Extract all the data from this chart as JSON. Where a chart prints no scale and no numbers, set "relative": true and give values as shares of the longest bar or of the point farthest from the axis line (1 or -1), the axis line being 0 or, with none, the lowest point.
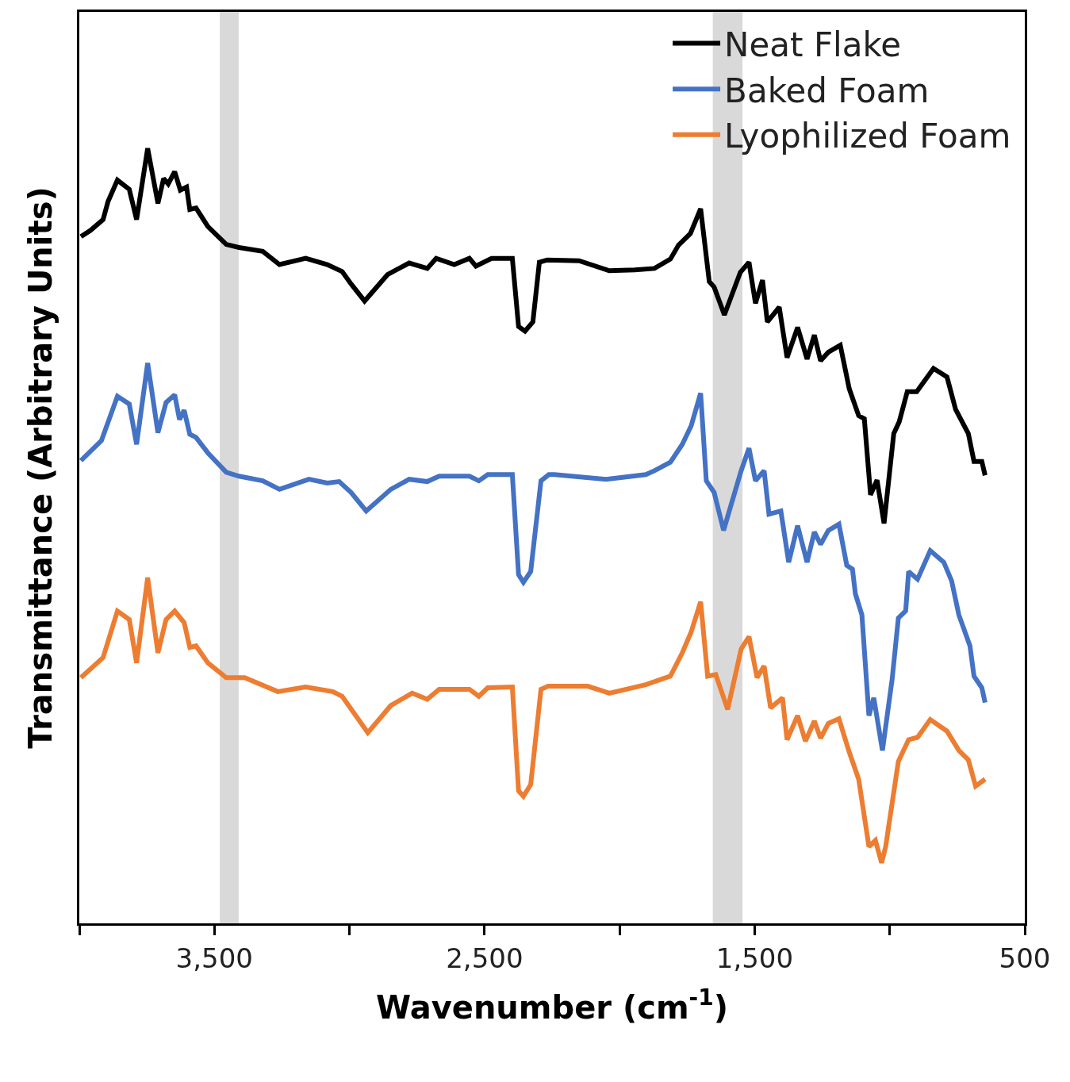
{
  "chart_data": {
    "type": "line",
    "relative": true,
    "xlabel": "Wavenumber (cm$^{-1}$)",
    "ylabel": "Transmittance (Arbitrary Units)",
    "xlim": [
      4000,
      500
    ],
    "xticks": [
      {
        "value": 4000,
        "label": null
      },
      {
        "value": 3500,
        "label": "3,500"
      },
      {
        "value": 3000,
        "label": null
      },
      {
        "value": 2500,
        "label": "2,500"
      },
      {
        "value": 2000,
        "label": null
      },
      {
        "value": 1500,
        "label": "1,500"
      },
      {
        "value": 1000,
        "label": null
      },
      500
    ],
    "legend": "top right",
    "grid": false,
    "marker": "none",
    "line_style": "solid",
    "bands": [
      {
        "axis": "x",
        "from": 3480,
        "to": 3410,
        "color": "#d9d9d9"
      },
      {
        "axis": "x",
        "from": 1655,
        "to": 1545,
        "color": "#d9d9d9"
      }
    ],
    "series": [
      {
        "name": "Neat Flake",
        "color": "#000000",
        "x": [
          3994,
          3959,
          3912,
          3894,
          3859,
          3815,
          3788,
          3747,
          3709,
          3688,
          3671,
          3647,
          3626,
          3603,
          3591,
          3568,
          3524,
          3456,
          3409,
          3321,
          3259,
          3162,
          3082,
          3027,
          2994,
          2944,
          2859,
          2779,
          2712,
          2679,
          2612,
          2556,
          2532,
          2474,
          2397,
          2374,
          2350,
          2321,
          2297,
          2268,
          2150,
          2038,
          1944,
          1871,
          1812,
          1782,
          1738,
          1700,
          1668,
          1650,
          1612,
          1553,
          1521,
          1497,
          1471,
          1453,
          1409,
          1380,
          1341,
          1306,
          1279,
          1256,
          1227,
          1183,
          1150,
          1115,
          1094,
          1071,
          1047,
          1021,
          985,
          965,
          935,
          900,
          838,
          788,
          756,
          709,
          688,
          659,
          647
        ],
        "values": [
          0.886,
          0.894,
          0.908,
          0.931,
          0.959,
          0.947,
          0.908,
          1.0,
          0.929,
          0.961,
          0.954,
          0.97,
          0.946,
          0.95,
          0.921,
          0.923,
          0.899,
          0.876,
          0.872,
          0.867,
          0.85,
          0.858,
          0.85,
          0.841,
          0.825,
          0.803,
          0.837,
          0.852,
          0.845,
          0.858,
          0.85,
          0.858,
          0.848,
          0.858,
          0.858,
          0.77,
          0.764,
          0.776,
          0.853,
          0.856,
          0.855,
          0.842,
          0.843,
          0.845,
          0.857,
          0.875,
          0.89,
          0.922,
          0.828,
          0.821,
          0.785,
          0.84,
          0.853,
          0.8,
          0.83,
          0.776,
          0.795,
          0.73,
          0.769,
          0.728,
          0.759,
          0.726,
          0.737,
          0.746,
          0.69,
          0.655,
          0.651,
          0.553,
          0.572,
          0.516,
          0.632,
          0.647,
          0.686,
          0.686,
          0.716,
          0.705,
          0.663,
          0.632,
          0.596,
          0.596,
          0.578
        ]
      },
      {
        "name": "Baked Foam",
        "color": "#4472c4",
        "x": [
          3994,
          3918,
          3859,
          3815,
          3788,
          3747,
          3709,
          3679,
          3647,
          3629,
          3612,
          3591,
          3568,
          3524,
          3456,
          3409,
          3321,
          3259,
          3150,
          3082,
          3038,
          2994,
          2938,
          2847,
          2779,
          2712,
          2668,
          2556,
          2521,
          2488,
          2397,
          2374,
          2356,
          2329,
          2291,
          2262,
          2241,
          2050,
          1903,
          1871,
          1812,
          1768,
          1735,
          1700,
          1679,
          1650,
          1615,
          1577,
          1550,
          1521,
          1497,
          1465,
          1447,
          1403,
          1374,
          1341,
          1306,
          1279,
          1256,
          1227,
          1188,
          1159,
          1138,
          1127,
          1103,
          1077,
          1059,
          1027,
          991,
          968,
          941,
          930,
          897,
          850,
          800,
          771,
          744,
          703,
          688,
          659,
          647
        ],
        "values": [
          0.597,
          0.623,
          0.68,
          0.67,
          0.618,
          0.723,
          0.633,
          0.672,
          0.682,
          0.65,
          0.662,
          0.631,
          0.627,
          0.607,
          0.582,
          0.577,
          0.571,
          0.56,
          0.573,
          0.568,
          0.57,
          0.556,
          0.532,
          0.56,
          0.573,
          0.57,
          0.577,
          0.577,
          0.571,
          0.579,
          0.579,
          0.45,
          0.44,
          0.454,
          0.571,
          0.579,
          0.579,
          0.573,
          0.579,
          0.584,
          0.595,
          0.618,
          0.642,
          0.684,
          0.571,
          0.556,
          0.507,
          0.552,
          0.584,
          0.613,
          0.571,
          0.584,
          0.528,
          0.532,
          0.466,
          0.513,
          0.466,
          0.505,
          0.489,
          0.507,
          0.515,
          0.462,
          0.457,
          0.425,
          0.398,
          0.268,
          0.291,
          0.223,
          0.315,
          0.394,
          0.403,
          0.454,
          0.444,
          0.481,
          0.466,
          0.442,
          0.398,
          0.358,
          0.319,
          0.304,
          0.285
        ]
      },
      {
        "name": "Lyophilized Foam",
        "color": "#ed7d31",
        "x": [
          3994,
          3912,
          3859,
          3815,
          3788,
          3747,
          3709,
          3679,
          3647,
          3612,
          3591,
          3568,
          3524,
          3456,
          3388,
          3265,
          3162,
          3062,
          3027,
          2932,
          2847,
          2768,
          2712,
          2668,
          2556,
          2521,
          2488,
          2397,
          2374,
          2356,
          2329,
          2291,
          2265,
          2118,
          2038,
          1903,
          1812,
          1768,
          1735,
          1700,
          1674,
          1644,
          1600,
          1550,
          1521,
          1491,
          1465,
          1441,
          1397,
          1380,
          1341,
          1312,
          1279,
          1256,
          1227,
          1188,
          1150,
          1115,
          1077,
          1053,
          1030,
          1015,
          968,
          930,
          897,
          850,
          788,
          744,
          709,
          682,
          647
        ],
        "values": [
          0.317,
          0.343,
          0.403,
          0.392,
          0.336,
          0.446,
          0.349,
          0.392,
          0.403,
          0.388,
          0.356,
          0.358,
          0.336,
          0.317,
          0.317,
          0.299,
          0.305,
          0.299,
          0.293,
          0.246,
          0.281,
          0.297,
          0.289,
          0.302,
          0.302,
          0.293,
          0.304,
          0.305,
          0.171,
          0.164,
          0.179,
          0.302,
          0.306,
          0.306,
          0.297,
          0.308,
          0.319,
          0.349,
          0.376,
          0.415,
          0.319,
          0.321,
          0.276,
          0.354,
          0.37,
          0.317,
          0.332,
          0.278,
          0.291,
          0.237,
          0.268,
          0.235,
          0.261,
          0.239,
          0.258,
          0.264,
          0.221,
          0.186,
          0.099,
          0.107,
          0.078,
          0.099,
          0.209,
          0.237,
          0.24,
          0.263,
          0.248,
          0.223,
          0.211,
          0.177,
          0.186
        ]
      }
    ]
  }
}
